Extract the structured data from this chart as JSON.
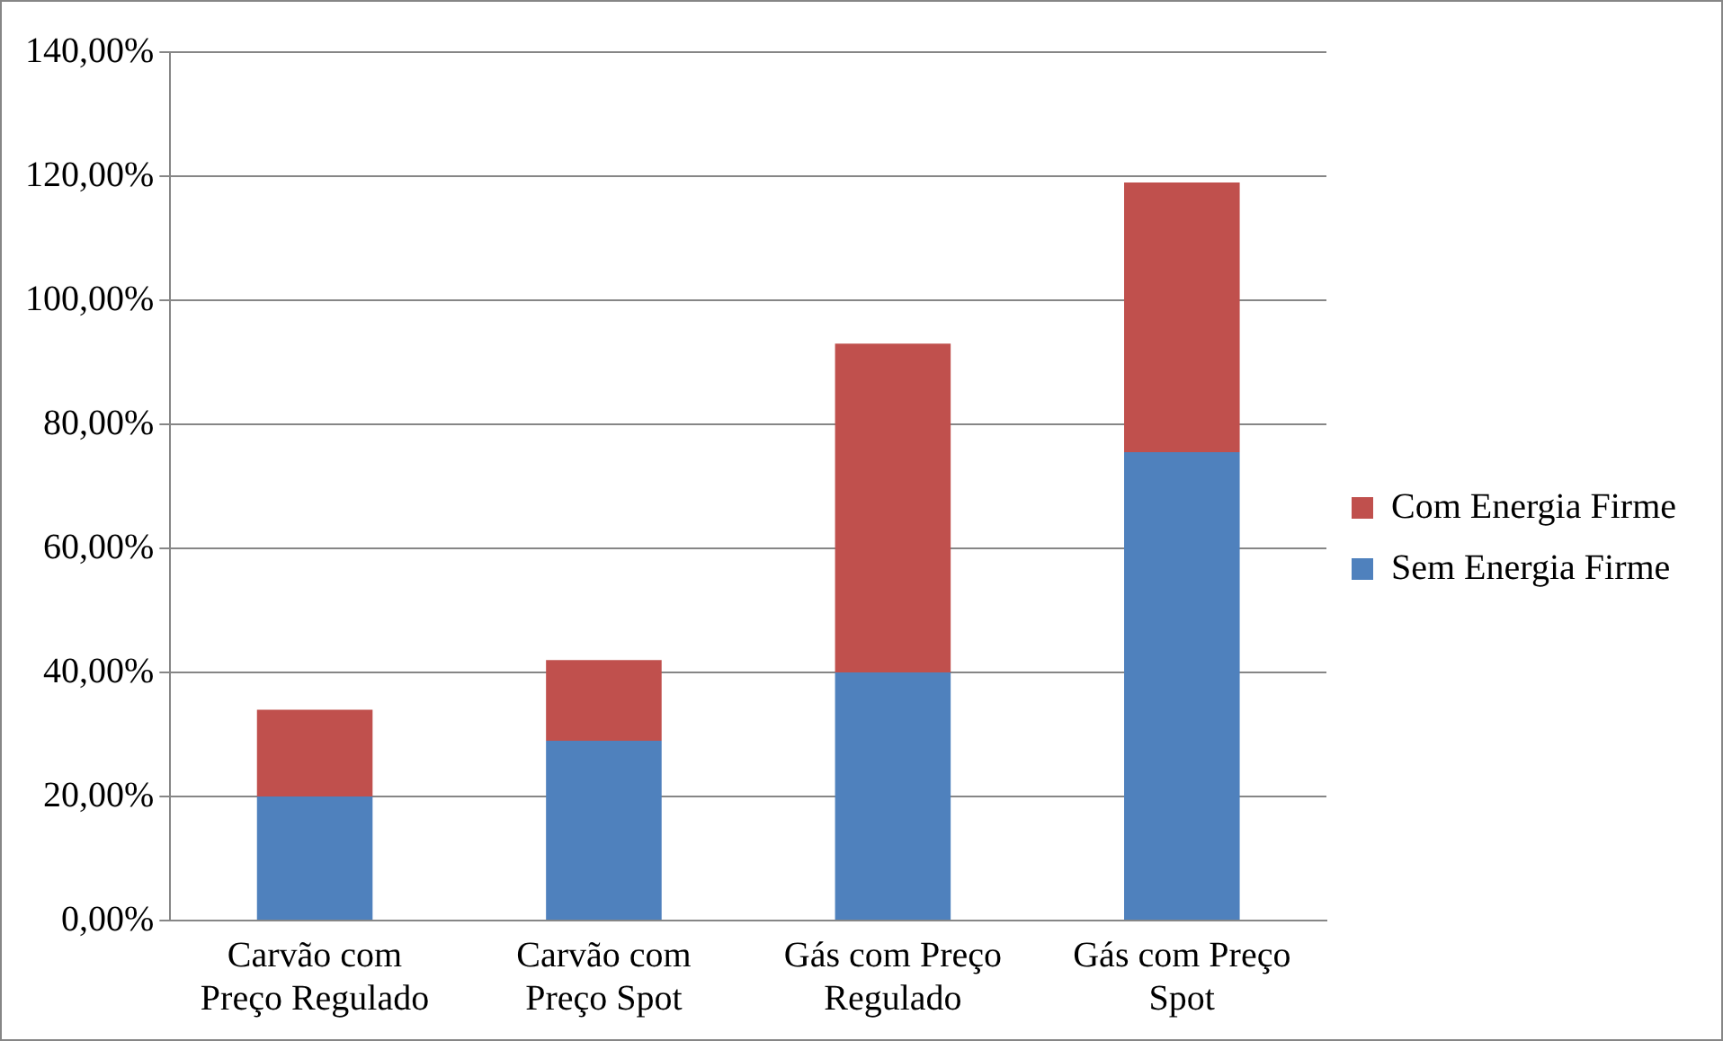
{
  "chart_data": {
    "type": "bar",
    "stacked": true,
    "categories": [
      "Carvão com Preço Regulado",
      "Carvão com Preço Spot",
      "Gás com Preço Regulado",
      "Gás com Preço Spot"
    ],
    "series": [
      {
        "name": "Sem Energia Firme",
        "color": "#4f81bd",
        "values": [
          20,
          29,
          40,
          75.5
        ]
      },
      {
        "name": "Com Energia Firme",
        "color": "#c0504d",
        "values": [
          14,
          13,
          53,
          43.5
        ]
      }
    ],
    "ylim": [
      0,
      140
    ],
    "yticks": [
      {
        "value": 0,
        "label": "0,00%"
      },
      {
        "value": 20,
        "label": "20,00%"
      },
      {
        "value": 40,
        "label": "40,00%"
      },
      {
        "value": 60,
        "label": "60,00%"
      },
      {
        "value": 80,
        "label": "80,00%"
      },
      {
        "value": 100,
        "label": "100,00%"
      },
      {
        "value": 120,
        "label": "120,00%"
      },
      {
        "value": 140,
        "label": "140,00%"
      }
    ],
    "grid": "y",
    "legend": "right"
  }
}
